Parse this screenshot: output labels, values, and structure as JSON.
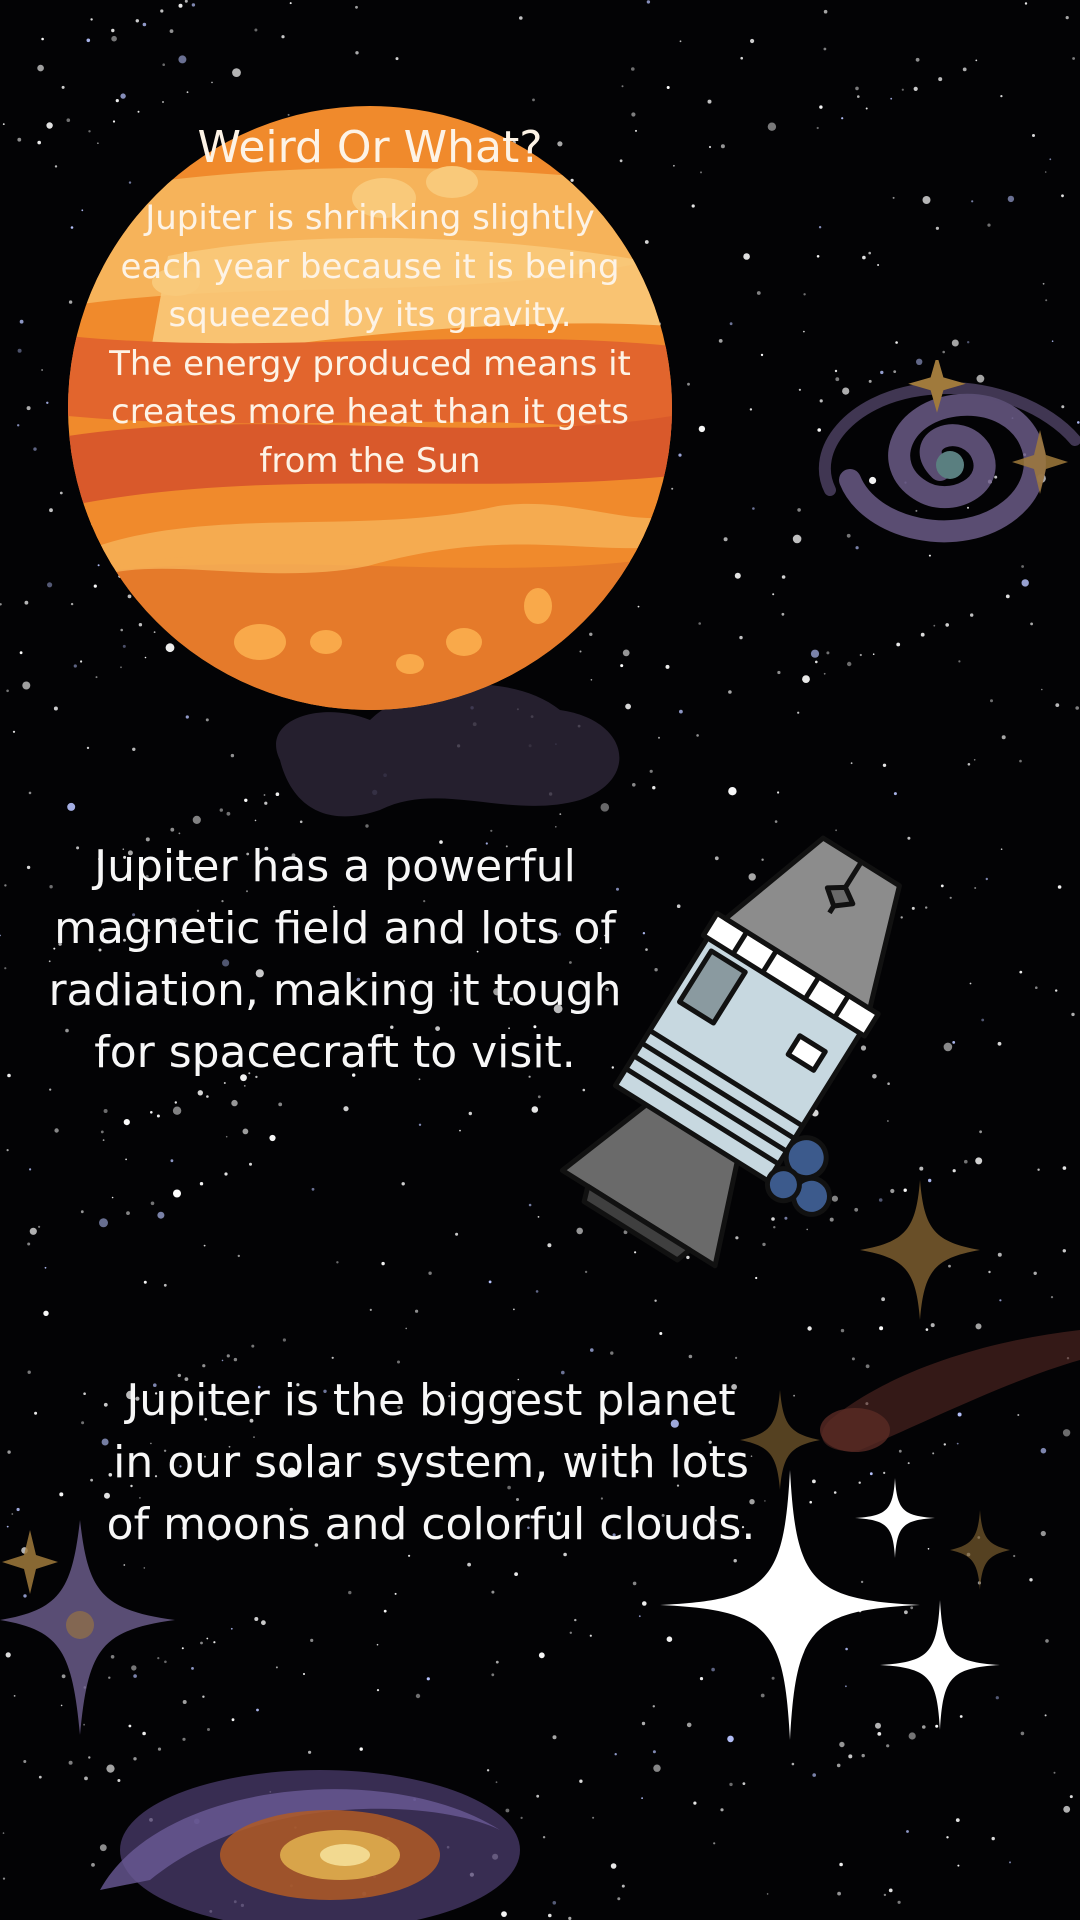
{
  "background": {
    "color": "#030305",
    "star_color": "#ffffff"
  },
  "planet": {
    "name_icon": "jupiter-planet-icon",
    "colors": [
      "#f08a2c",
      "#f6b35a",
      "#d9592b",
      "#f9c97a"
    ],
    "title": "Weird Or What?",
    "body_lines": [
      "Jupiter is shrinking slightly",
      "each year because it is being",
      "squeezed by its gravity.",
      "The energy produced means it",
      "creates more heat than it gets",
      "from the Sun"
    ]
  },
  "facts": [
    {
      "lines": [
        "Jupiter has a powerful",
        "magnetic field and lots of",
        "radiation, making it tough",
        "for spacecraft to visit."
      ]
    },
    {
      "lines": [
        "Jupiter is the biggest planet",
        "in our solar system, with lots",
        "of moons and colorful clouds."
      ]
    }
  ],
  "decor": {
    "icons": [
      "spiral-galaxy-icon",
      "spacecraft-icon",
      "comet-icon",
      "sparkle-star-icon",
      "galaxy-icon"
    ],
    "galaxy_color": "#6f6090",
    "sparkle_gold": "#a07a3c",
    "sparkle_white": "#ffffff"
  }
}
